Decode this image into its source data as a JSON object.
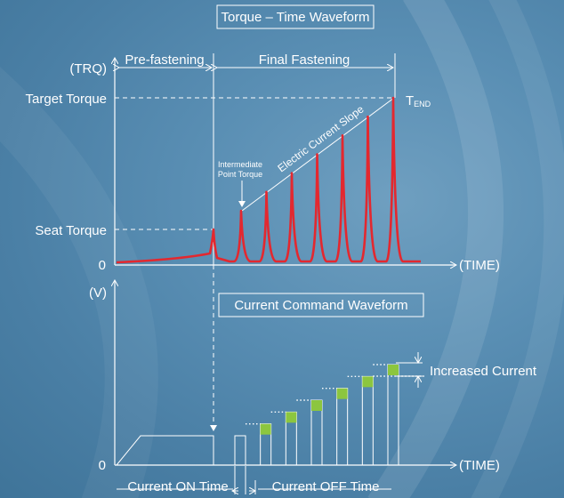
{
  "torque_panel": {
    "title": "Torque – Time Waveform",
    "y_axis_label": "(TRQ)",
    "x_axis_label": "(TIME)",
    "origin_label": "0",
    "target_torque_label": "Target Torque",
    "seat_torque_label": "Seat Torque",
    "phase_prefastening": "Pre-fastening",
    "phase_final": "Final Fastening",
    "t_end_main": "T",
    "t_end_sub": "END",
    "slope_label": "Electric Current Slope",
    "intermediate_line1": "Intermediate",
    "intermediate_line2": "Point Torque",
    "pulse_count": 7,
    "pulse_color": "#e3282f"
  },
  "current_panel": {
    "title": "Current Command Waveform",
    "y_axis_label": "(V)",
    "x_axis_label": "(TIME)",
    "origin_label": "0",
    "increased_current_label": "Increased Current",
    "on_time_label": "Current ON Time",
    "off_time_label": "Current OFF Time",
    "step_count": 7,
    "step_marker_color": "#8cc63f"
  }
}
